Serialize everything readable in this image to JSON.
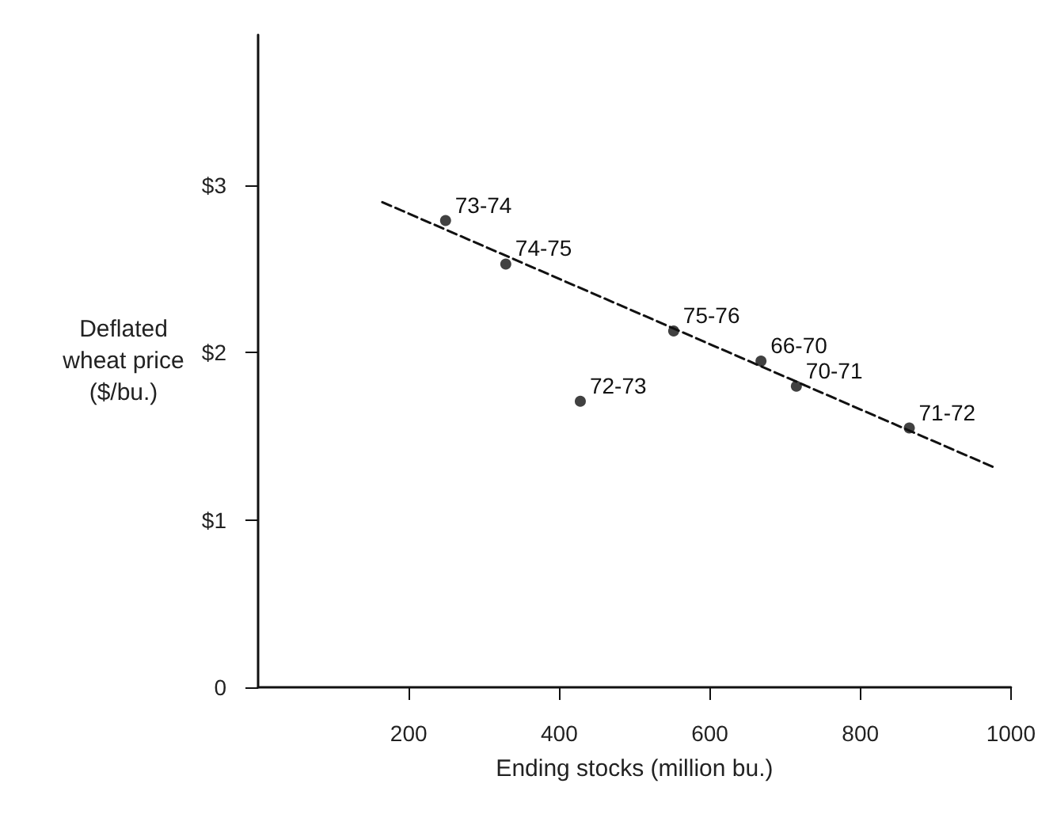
{
  "chart_data": {
    "type": "scatter",
    "xlabel": "Ending stocks (million bu.)",
    "ylabel": "Deflated\nwheat price\n($/bu.)",
    "xlim": [
      0,
      1000
    ],
    "xticks": [
      200,
      400,
      600,
      800,
      1000
    ],
    "ylim": [
      0,
      3.9
    ],
    "yticks": [
      0,
      {
        "value": 1,
        "label": "$1"
      },
      {
        "value": 2,
        "label": "$2"
      },
      {
        "value": 3,
        "label": "$3"
      }
    ],
    "grid": false,
    "marker": "circle",
    "series": [
      {
        "color": "#111111",
        "x": [
          249,
          329,
          552,
          668,
          715,
          865,
          428
        ],
        "values": [
          2.79,
          2.53,
          2.13,
          1.95,
          1.8,
          1.55,
          1.71
        ]
      },
      {
        "type": "line",
        "line_style": "dashed",
        "marker": "none",
        "color": "#111111",
        "x": [
          165,
          980
        ],
        "values": [
          2.9,
          1.31
        ]
      }
    ],
    "annotations": [
      {
        "text": "73-74",
        "x": 249,
        "y": 2.79
      },
      {
        "text": "74-75",
        "x": 329,
        "y": 2.53
      },
      {
        "text": "75-76",
        "x": 552,
        "y": 2.13
      },
      {
        "text": "66-70",
        "x": 668,
        "y": 1.95
      },
      {
        "text": "70-71",
        "x": 715,
        "y": 1.8
      },
      {
        "text": "71-72",
        "x": 865,
        "y": 1.55
      },
      {
        "text": "72-73",
        "x": 428,
        "y": 1.71
      }
    ]
  }
}
